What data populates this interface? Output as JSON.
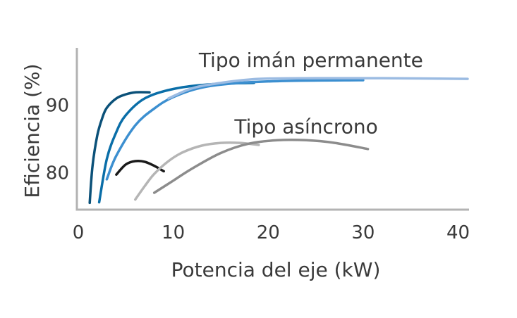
{
  "chart_data": {
    "type": "line",
    "title": "",
    "xlabel": "Potencia del eje (kW)",
    "ylabel": "Eficiencia (%)",
    "xlim": [
      0,
      41
    ],
    "ylim": [
      74.5,
      98.5
    ],
    "x_ticks": [
      "0",
      "10",
      "20",
      "30",
      "40"
    ],
    "y_ticks": [
      "80",
      "90"
    ],
    "x_tick_values": [
      0,
      10,
      20,
      30,
      40
    ],
    "y_tick_values": [
      80,
      90
    ],
    "grid": false,
    "annotations": [
      {
        "text": "Tipo imán permanente",
        "x": 24.5,
        "y": 95.7
      },
      {
        "text": "Tipo asíncrono",
        "x": 24,
        "y": 85.8
      }
    ],
    "series": [
      {
        "group": "Tipo imán permanente",
        "color": "#0b5179",
        "x": [
          1.2,
          1.5,
          2.0,
          2.5,
          3.0,
          4.0,
          5.0,
          6.0,
          7.5
        ],
        "y": [
          75.5,
          81.0,
          85.5,
          88.0,
          89.6,
          91.0,
          91.6,
          91.9,
          91.9
        ]
      },
      {
        "group": "Tipo imán permanente",
        "color": "#0a6ea8",
        "x": [
          2.2,
          3.0,
          4.0,
          5.0,
          7.0,
          10.0,
          14.0,
          18.5
        ],
        "y": [
          75.6,
          82.0,
          86.0,
          88.5,
          91.0,
          92.4,
          93.1,
          93.3
        ]
      },
      {
        "group": "Tipo imán permanente",
        "color": "#3c8fd0",
        "x": [
          3.0,
          4.0,
          6.0,
          8.0,
          10.0,
          13.0,
          17.0,
          22.0,
          30.0
        ],
        "y": [
          79.0,
          82.5,
          87.0,
          89.5,
          91.2,
          92.6,
          93.3,
          93.6,
          93.7
        ]
      },
      {
        "group": "Tipo imán permanente",
        "color": "#9bbbe2",
        "x": [
          9.5,
          12.0,
          15.0,
          19.0,
          25.0,
          32.0,
          41.0
        ],
        "y": [
          91.0,
          92.5,
          93.3,
          93.9,
          94.0,
          94.0,
          93.9
        ]
      },
      {
        "group": "Tipo asíncrono",
        "color": "#1a1a1a",
        "x": [
          4.0,
          5.0,
          6.0,
          7.0,
          8.0,
          9.0
        ],
        "y": [
          79.7,
          81.2,
          81.7,
          81.6,
          81.0,
          80.2
        ]
      },
      {
        "group": "Tipo asíncrono",
        "color": "#b5b5b5",
        "x": [
          6.0,
          7.0,
          8.0,
          9.5,
          11.0,
          13.0,
          15.0,
          17.0,
          19.0
        ],
        "y": [
          76.0,
          78.0,
          79.8,
          81.7,
          83.0,
          84.0,
          84.4,
          84.4,
          84.1
        ]
      },
      {
        "group": "Tipo asíncrono",
        "color": "#8c8c8c",
        "x": [
          8.0,
          10.0,
          12.0,
          15.0,
          18.0,
          21.0,
          24.0,
          27.0,
          30.5
        ],
        "y": [
          77.0,
          78.8,
          80.6,
          82.9,
          84.3,
          84.8,
          84.8,
          84.4,
          83.5
        ]
      }
    ]
  }
}
